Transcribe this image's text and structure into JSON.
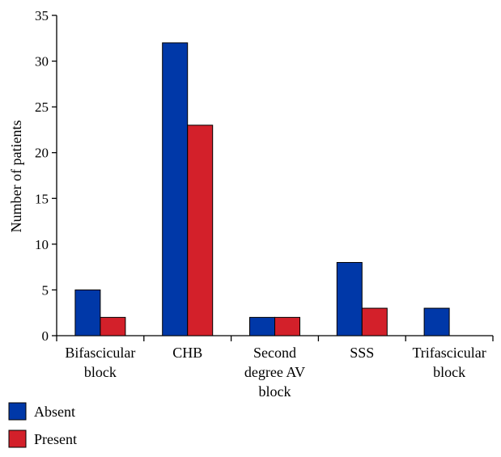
{
  "chart_data": {
    "type": "bar",
    "categories": [
      [
        "Bifascicular",
        "block"
      ],
      [
        "CHB"
      ],
      [
        "Second",
        "degree AV",
        "block"
      ],
      [
        "SSS"
      ],
      [
        "Trifascicular",
        "block"
      ]
    ],
    "series": [
      {
        "name": "Absent",
        "color": "#0038a8",
        "values": [
          5,
          32,
          2,
          8,
          3
        ]
      },
      {
        "name": "Present",
        "color": "#d3202a",
        "values": [
          2,
          23,
          2,
          3,
          0
        ]
      }
    ],
    "title": "",
    "xlabel": "",
    "ylabel": "Number of patients",
    "ylim": [
      0,
      35
    ],
    "yticks": [
      0,
      5,
      10,
      15,
      20,
      25,
      30,
      35
    ],
    "grid": false,
    "legend_position": "bottom-left"
  }
}
